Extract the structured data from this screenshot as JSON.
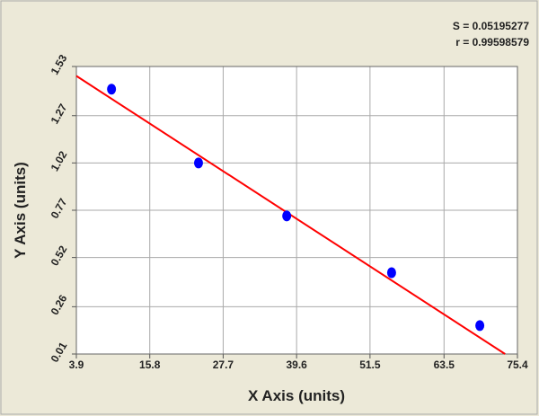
{
  "chart_data": {
    "type": "scatter",
    "stats": [
      "S = 0.05195277",
      "r = 0.99598579"
    ],
    "x_label": "X Axis (units)",
    "y_label": "Y Axis (units)",
    "x": [
      9.6,
      23.7,
      38.0,
      55.0,
      69.3
    ],
    "values": [
      1.41,
      1.02,
      0.74,
      0.44,
      0.16
    ],
    "color": "#0000ff",
    "fit": {
      "x": [
        3.9,
        73.4
      ],
      "y": [
        1.48,
        0.01
      ],
      "color": "#ff0000"
    },
    "xlim": [
      3.9,
      75.4
    ],
    "xticks": [
      3.9,
      15.8,
      27.7,
      39.6,
      51.5,
      63.5,
      75.4
    ],
    "ylim": [
      0.01,
      1.53
    ],
    "yticks": [
      0.01,
      0.26,
      0.52,
      0.77,
      1.02,
      1.27,
      1.53
    ],
    "grid": true
  }
}
